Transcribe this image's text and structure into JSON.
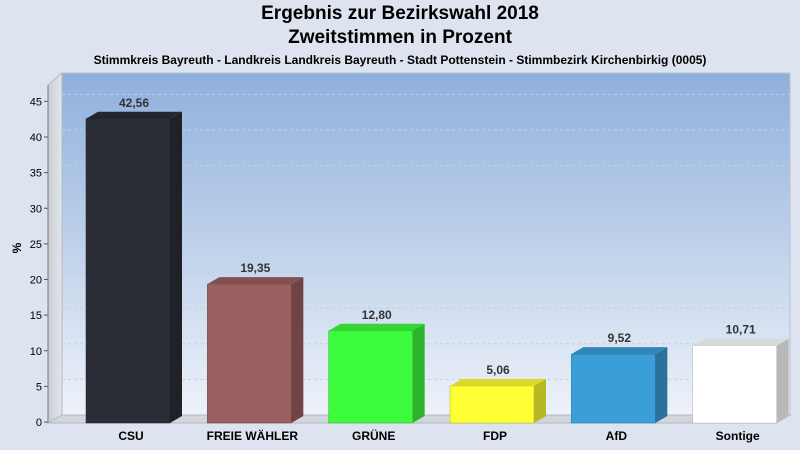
{
  "chart_data": {
    "type": "bar",
    "title": [
      "Ergebnis zur Bezirkswahl 2018",
      "Zweitstimmen in Prozent"
    ],
    "subtitle": "Stimmkreis Bayreuth - Landkreis Landkreis Bayreuth - Stadt Pottenstein - Stimmbezirk Kirchenbirkig (0005)",
    "ylabel": "%",
    "ylim": [
      0,
      45
    ],
    "yticks": [
      0,
      5,
      10,
      15,
      20,
      25,
      30,
      35,
      40,
      45
    ],
    "grid": true,
    "categories": [
      "CSU",
      "FREIE WÄHLER",
      "GRÜNE",
      "FDP",
      "AfD",
      "Sontige"
    ],
    "values": [
      42.56,
      19.35,
      12.8,
      5.06,
      9.52,
      10.71
    ],
    "value_labels": [
      "42,56",
      "19,35",
      "12,80",
      "5,06",
      "9,52",
      "10,71"
    ],
    "colors": [
      "#2b2e36",
      "#9b5f5f",
      "#3dfb3d",
      "#ffff33",
      "#3a9fd8",
      "#ffffff"
    ]
  }
}
